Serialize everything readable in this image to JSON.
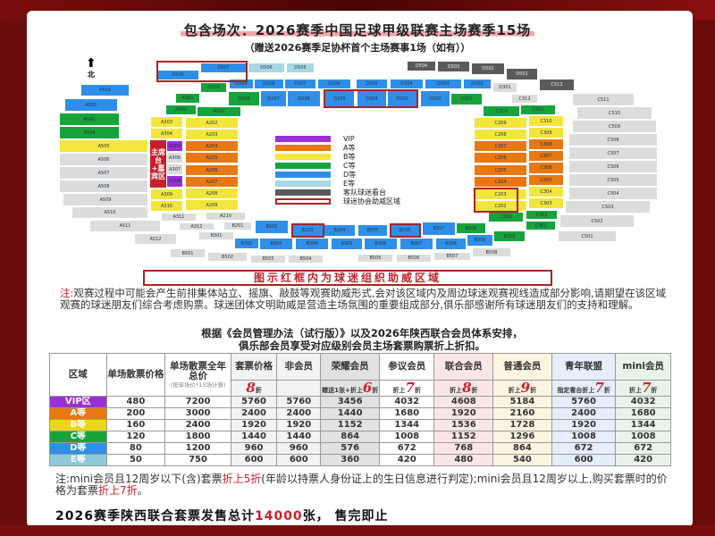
{
  "header": {
    "title": "包含场次：2026赛季中国足球甲级联赛主场赛季15场",
    "subtitle": "（赠送2026赛季足协杯首个主场赛事1场（如有））"
  },
  "map": {
    "north_label": "北",
    "host_area_label": "主席台+嘉宾区",
    "tier_colors": {
      "VIP": "#9b2fd6",
      "A": "#e8780f",
      "B": "#f3e53c",
      "C": "#17a33a",
      "D": "#2f8fe8",
      "E": "#a8d8e2",
      "away": "#5a5a5a",
      "other": "#dcdcdc"
    },
    "legend": [
      {
        "tier": "VIP",
        "label": "VIP"
      },
      {
        "tier": "A",
        "label": "A等"
      },
      {
        "tier": "B",
        "label": "B等"
      },
      {
        "tier": "C",
        "label": "C等"
      },
      {
        "tier": "D",
        "label": "D等"
      },
      {
        "tier": "E",
        "label": "E等"
      },
      {
        "tier": "away",
        "label": "客队球迷看台"
      },
      {
        "tier": "fan",
        "label": "球迷协会助威区域"
      }
    ],
    "sections": [
      {
        "code": "D508",
        "tier": "D"
      },
      {
        "code": "D507",
        "tier": "D"
      },
      {
        "code": "D506",
        "tier": "E"
      },
      {
        "code": "D505",
        "tier": "E"
      },
      {
        "code": "D504",
        "tier": "away"
      },
      {
        "code": "D503",
        "tier": "away"
      },
      {
        "code": "D502",
        "tier": "away"
      },
      {
        "code": "D501",
        "tier": "away"
      },
      {
        "code": "C512",
        "tier": "away"
      },
      {
        "code": "D309",
        "tier": "D"
      },
      {
        "code": "D308",
        "tier": "D"
      },
      {
        "code": "D307",
        "tier": "D"
      },
      {
        "code": "D306",
        "tier": "D"
      },
      {
        "code": "D305",
        "tier": "D"
      },
      {
        "code": "D304",
        "tier": "D"
      },
      {
        "code": "D303",
        "tier": "D"
      },
      {
        "code": "D302",
        "tier": "D"
      },
      {
        "code": "D301",
        "tier": "other"
      },
      {
        "code": "C312",
        "tier": "other"
      },
      {
        "code": "D310",
        "tier": "C"
      },
      {
        "code": "D208",
        "tier": "C"
      },
      {
        "code": "D207",
        "tier": "D"
      },
      {
        "code": "D206",
        "tier": "D"
      },
      {
        "code": "D205",
        "tier": "D"
      },
      {
        "code": "D204",
        "tier": "D"
      },
      {
        "code": "D203",
        "tier": "D"
      },
      {
        "code": "D202",
        "tier": "D"
      },
      {
        "code": "D201",
        "tier": "C"
      },
      {
        "code": "A503",
        "tier": "D"
      },
      {
        "code": "A502",
        "tier": "D"
      },
      {
        "code": "A501",
        "tier": "C"
      },
      {
        "code": "A504",
        "tier": "C"
      },
      {
        "code": "A505",
        "tier": "B"
      },
      {
        "code": "A506",
        "tier": "other"
      },
      {
        "code": "A507",
        "tier": "other"
      },
      {
        "code": "A508",
        "tier": "other"
      },
      {
        "code": "A509",
        "tier": "other"
      },
      {
        "code": "A510",
        "tier": "other"
      },
      {
        "code": "A511",
        "tier": "other"
      },
      {
        "code": "A512",
        "tier": "other"
      },
      {
        "code": "A301",
        "tier": "C"
      },
      {
        "code": "A302",
        "tier": "C"
      },
      {
        "code": "A303",
        "tier": "B"
      },
      {
        "code": "A304",
        "tier": "B"
      },
      {
        "code": "A305",
        "tier": "VIP"
      },
      {
        "code": "A306",
        "tier": "other"
      },
      {
        "code": "A307",
        "tier": "other"
      },
      {
        "code": "A308",
        "tier": "VIP"
      },
      {
        "code": "A309",
        "tier": "B"
      },
      {
        "code": "A310",
        "tier": "B"
      },
      {
        "code": "A311",
        "tier": "other"
      },
      {
        "code": "A312",
        "tier": "other"
      },
      {
        "code": "A201",
        "tier": "C"
      },
      {
        "code": "A202",
        "tier": "B"
      },
      {
        "code": "A203",
        "tier": "B"
      },
      {
        "code": "A204",
        "tier": "A"
      },
      {
        "code": "A205",
        "tier": "A"
      },
      {
        "code": "A206",
        "tier": "A"
      },
      {
        "code": "A207",
        "tier": "A"
      },
      {
        "code": "A208",
        "tier": "B"
      },
      {
        "code": "A209",
        "tier": "B"
      },
      {
        "code": "A210",
        "tier": "other"
      },
      {
        "code": "B201",
        "tier": "other"
      },
      {
        "code": "B202",
        "tier": "D"
      },
      {
        "code": "B203",
        "tier": "D"
      },
      {
        "code": "B204",
        "tier": "D"
      },
      {
        "code": "B205",
        "tier": "D"
      },
      {
        "code": "B206",
        "tier": "D"
      },
      {
        "code": "B207",
        "tier": "D"
      },
      {
        "code": "B208",
        "tier": "C"
      },
      {
        "code": "B301",
        "tier": "other"
      },
      {
        "code": "B302",
        "tier": "D"
      },
      {
        "code": "B303",
        "tier": "D"
      },
      {
        "code": "B304",
        "tier": "D"
      },
      {
        "code": "B305",
        "tier": "D"
      },
      {
        "code": "B306",
        "tier": "D"
      },
      {
        "code": "B307",
        "tier": "D"
      },
      {
        "code": "B308",
        "tier": "D"
      },
      {
        "code": "B309",
        "tier": "D"
      },
      {
        "code": "B310",
        "tier": "C"
      },
      {
        "code": "B501",
        "tier": "other"
      },
      {
        "code": "B502",
        "tier": "other"
      },
      {
        "code": "B503",
        "tier": "other"
      },
      {
        "code": "B504",
        "tier": "other"
      },
      {
        "code": "B505",
        "tier": "other"
      },
      {
        "code": "B506",
        "tier": "other"
      },
      {
        "code": "B507",
        "tier": "other"
      },
      {
        "code": "B508",
        "tier": "other"
      },
      {
        "code": "C210",
        "tier": "C"
      },
      {
        "code": "C209",
        "tier": "B"
      },
      {
        "code": "C208",
        "tier": "B"
      },
      {
        "code": "C207",
        "tier": "A"
      },
      {
        "code": "C206",
        "tier": "A"
      },
      {
        "code": "C205",
        "tier": "A"
      },
      {
        "code": "C204",
        "tier": "A"
      },
      {
        "code": "C203",
        "tier": "B"
      },
      {
        "code": "C202",
        "tier": "B"
      },
      {
        "code": "C201",
        "tier": "C"
      },
      {
        "code": "C311",
        "tier": "C"
      },
      {
        "code": "C310",
        "tier": "B"
      },
      {
        "code": "C309",
        "tier": "B"
      },
      {
        "code": "C308",
        "tier": "A"
      },
      {
        "code": "C307",
        "tier": "A"
      },
      {
        "code": "C306",
        "tier": "A"
      },
      {
        "code": "C305",
        "tier": "A"
      },
      {
        "code": "C304",
        "tier": "B"
      },
      {
        "code": "C303",
        "tier": "B"
      },
      {
        "code": "C302",
        "tier": "C"
      },
      {
        "code": "C301",
        "tier": "C"
      },
      {
        "code": "C511",
        "tier": "other"
      },
      {
        "code": "C510",
        "tier": "other"
      },
      {
        "code": "C509",
        "tier": "other"
      },
      {
        "code": "C508",
        "tier": "other"
      },
      {
        "code": "C507",
        "tier": "other"
      },
      {
        "code": "C506",
        "tier": "other"
      },
      {
        "code": "C505",
        "tier": "other"
      },
      {
        "code": "C504",
        "tier": "other"
      },
      {
        "code": "C503",
        "tier": "other"
      },
      {
        "code": "C502",
        "tier": "other"
      },
      {
        "code": "C501",
        "tier": "other"
      }
    ]
  },
  "fan_zone_banner": "图示红框内为球迷组织助威区域",
  "note1": {
    "prefix": "注:",
    "text": "观赛过程中可能会产生前排集体站立、摇旗、敲鼓等观赛助威形式,会对该区域内及周边球迷观赛视线造成部分影响,请期望在该区域观赛的球迷朋友们综合考虑购票。球迷团体文明助威是营造主场氛围的重要组成部分,俱乐部感谢所有球迷朋友们的支持和理解。"
  },
  "rule": {
    "line1": "根据《会员管理办法（试行版）》以及2026年陕西联合会员体系安排，",
    "line2": "俱乐部会员享受对应级别会员主场套票购票折上折扣。"
  },
  "table": {
    "headers": [
      "区域",
      "单场散票价格",
      "单场散票全年总价",
      "套票价格",
      "非会员",
      "荣耀会员",
      "参议会员",
      "联合会员",
      "普通会员",
      "青年联盟",
      "mini会员"
    ],
    "total_note": "(按单场价*15场计算)",
    "discounts": [
      {
        "pre": "",
        "num": "8",
        "suf": "折"
      },
      {
        "pre": "",
        "num": "",
        "suf": ""
      },
      {
        "pre": "赠送1张+折上",
        "num": "6",
        "suf": "折"
      },
      {
        "pre": "折上",
        "num": "7",
        "suf": "折"
      },
      {
        "pre": "折上",
        "num": "8",
        "suf": "折"
      },
      {
        "pre": "折上",
        "num": "9",
        "suf": "折"
      },
      {
        "pre": "指定看台折上",
        "num": "7",
        "suf": "折"
      },
      {
        "pre": "折上",
        "num": "7",
        "suf": "折"
      }
    ],
    "rows": [
      {
        "zone": "VIP区",
        "color": "#9b2fd6",
        "values": [
          "480",
          "7200",
          "5760",
          "5760",
          "3456",
          "4032",
          "4608",
          "5184",
          "5760",
          "4032"
        ]
      },
      {
        "zone": "A等",
        "color": "#e8780f",
        "values": [
          "200",
          "3000",
          "2400",
          "2400",
          "1440",
          "1680",
          "1920",
          "2160",
          "2400",
          "1680"
        ]
      },
      {
        "zone": "B等",
        "color": "#e8d81c",
        "values": [
          "160",
          "2400",
          "1920",
          "1920",
          "1152",
          "1344",
          "1536",
          "1728",
          "1920",
          "1344"
        ]
      },
      {
        "zone": "C等",
        "color": "#17a33a",
        "values": [
          "120",
          "1800",
          "1440",
          "1440",
          "864",
          "1008",
          "1152",
          "1296",
          "1008",
          "1008"
        ]
      },
      {
        "zone": "D等",
        "color": "#2f8fe8",
        "values": [
          "80",
          "1200",
          "960",
          "960",
          "576",
          "672",
          "768",
          "864",
          "672",
          "672"
        ]
      },
      {
        "zone": "E等",
        "color": "#8ecbd8",
        "values": [
          "50",
          "750",
          "600",
          "600",
          "360",
          "420",
          "480",
          "540",
          "600",
          "420"
        ]
      }
    ]
  },
  "note2": {
    "p1": "注:mini会员且12周岁以下(含)套票",
    "h1": "折上5折",
    "p2": "(年龄以持票人身份证上的生日信息进行判定);mini会员且12周岁以上,购买套票时的价格为套票",
    "h2": "折上7折",
    "p3": "。"
  },
  "footer": {
    "pre": "2026赛季陕西联合套票发售总计",
    "count": "14000",
    "post": "张， 售完即止"
  }
}
